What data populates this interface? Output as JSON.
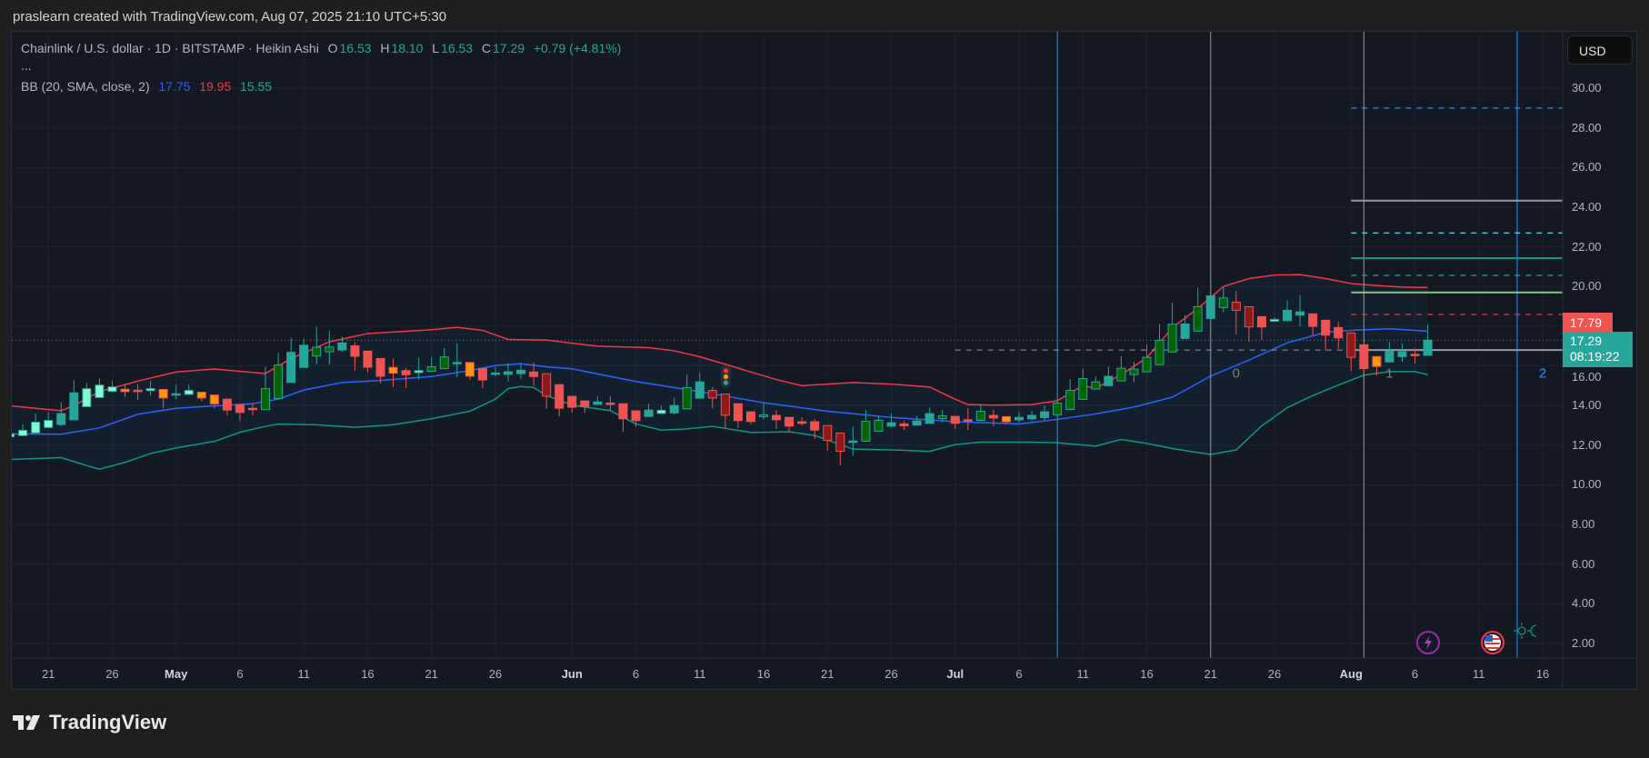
{
  "credit": "praslearn created with TradingView.com, Aug 07, 2025 21:10 UTC+5:30",
  "legend": {
    "symbol": "Chainlink / U.S. dollar · 1D · BITSTAMP · Heikin Ashi",
    "o_label": "O",
    "o": "16.53",
    "h_label": "H",
    "h": "18.10",
    "l_label": "L",
    "l": "16.53",
    "c_label": "C",
    "c": "17.29",
    "change": "+0.79 (+4.81%)",
    "more": "...",
    "bb_label": "BB (20, SMA, close, 2)",
    "bb_basis": "17.75",
    "bb_upper": "19.95",
    "bb_lower": "15.55"
  },
  "currency_button": "USD",
  "price_axis": [
    "30.00",
    "28.00",
    "26.00",
    "24.00",
    "22.00",
    "20.00",
    "16.00",
    "14.00",
    "12.00",
    "10.00",
    "8.00",
    "6.00",
    "4.00",
    "2.00"
  ],
  "price_labels": {
    "high": "17.79",
    "last": "17.29",
    "countdown": "08:19:22"
  },
  "time_axis": [
    {
      "label": "21",
      "day": 0
    },
    {
      "label": "26",
      "day": 5
    },
    {
      "label": "May",
      "day": 10,
      "month": true
    },
    {
      "label": "6",
      "day": 15
    },
    {
      "label": "11",
      "day": 20
    },
    {
      "label": "16",
      "day": 25
    },
    {
      "label": "21",
      "day": 30
    },
    {
      "label": "26",
      "day": 35
    },
    {
      "label": "Jun",
      "day": 41,
      "month": true
    },
    {
      "label": "6",
      "day": 46
    },
    {
      "label": "11",
      "day": 51
    },
    {
      "label": "16",
      "day": 56
    },
    {
      "label": "21",
      "day": 61
    },
    {
      "label": "26",
      "day": 66
    },
    {
      "label": "Jul",
      "day": 71,
      "month": true
    },
    {
      "label": "6",
      "day": 76
    },
    {
      "label": "11",
      "day": 81
    },
    {
      "label": "16",
      "day": 86
    },
    {
      "label": "21",
      "day": 91
    },
    {
      "label": "26",
      "day": 96
    },
    {
      "label": "Aug",
      "day": 102,
      "month": true
    },
    {
      "label": "6",
      "day": 107
    },
    {
      "label": "11",
      "day": 112
    },
    {
      "label": "16",
      "day": 117
    }
  ],
  "drawing_labels": [
    {
      "text": "0",
      "day": 93,
      "price": 15.4,
      "color": "#787b86"
    },
    {
      "text": "1",
      "day": 105,
      "price": 15.4,
      "color": "#787b86"
    },
    {
      "text": "2",
      "day": 117,
      "price": 15.4,
      "color": "#2196f3"
    }
  ],
  "footer_brand": "TradingView",
  "colors": {
    "up": "#26a69a",
    "down": "#ef5350",
    "aqua": "#80ffd4",
    "dark_green": "#006400",
    "dark_red": "#8b1a1a",
    "orange": "#ff9800",
    "bb_basis": "#2962ff",
    "bb_upper": "#f23645",
    "bb_lower": "#089981"
  },
  "chart_data": {
    "type": "candlestick",
    "style": "Heikin Ashi",
    "first_day_offset": -3,
    "candles": [
      [
        12.42,
        12.6,
        12.4,
        12.57,
        "A"
      ],
      [
        12.48,
        13.04,
        12.48,
        12.75,
        "A"
      ],
      [
        12.62,
        13.59,
        12.62,
        13.16,
        "A"
      ],
      [
        12.89,
        13.67,
        12.89,
        13.25,
        "A"
      ],
      [
        13.04,
        14.17,
        12.95,
        13.59,
        "T"
      ],
      [
        13.28,
        15.28,
        13.28,
        14.64,
        "T"
      ],
      [
        13.94,
        15.14,
        13.94,
        14.85,
        "A"
      ],
      [
        14.4,
        15.37,
        14.4,
        15.03,
        "A"
      ],
      [
        14.71,
        15.26,
        14.71,
        14.94,
        "A"
      ],
      [
        14.82,
        15.08,
        14.43,
        14.7,
        "O"
      ],
      [
        14.77,
        15.08,
        14.29,
        14.75,
        "R"
      ],
      [
        14.75,
        15.23,
        14.5,
        14.85,
        "A"
      ],
      [
        14.81,
        14.81,
        13.86,
        14.38,
        "O"
      ],
      [
        14.57,
        15.05,
        14.32,
        14.59,
        "T"
      ],
      [
        14.56,
        15.05,
        14.56,
        14.76,
        "A"
      ],
      [
        14.67,
        14.67,
        14.2,
        14.38,
        "O"
      ],
      [
        14.53,
        14.53,
        13.86,
        14.08,
        "O"
      ],
      [
        14.32,
        14.32,
        13.5,
        13.77,
        "R"
      ],
      [
        14.05,
        14.05,
        13.22,
        13.65,
        "R"
      ],
      [
        13.86,
        14.09,
        13.51,
        13.79,
        "R"
      ],
      [
        13.79,
        15.96,
        13.79,
        14.85,
        "G"
      ],
      [
        14.35,
        16.68,
        14.35,
        16.04,
        "G"
      ],
      [
        15.16,
        17.42,
        15.16,
        16.68,
        "T"
      ],
      [
        15.92,
        17.38,
        15.92,
        17.04,
        "T"
      ],
      [
        16.49,
        17.97,
        16.07,
        16.94,
        "G"
      ],
      [
        16.71,
        17.79,
        16.07,
        16.95,
        "G"
      ],
      [
        16.8,
        17.48,
        16.7,
        17.15,
        "T"
      ],
      [
        17.01,
        17.18,
        15.75,
        16.48,
        "R"
      ],
      [
        16.74,
        16.74,
        15.66,
        15.93,
        "R"
      ],
      [
        16.37,
        16.37,
        15.11,
        15.48,
        "R"
      ],
      [
        15.92,
        16.37,
        14.93,
        15.63,
        "O"
      ],
      [
        15.76,
        15.9,
        14.88,
        15.55,
        "R"
      ],
      [
        15.66,
        16.42,
        15.29,
        15.76,
        "A"
      ],
      [
        15.72,
        16.45,
        15.72,
        15.95,
        "G"
      ],
      [
        15.86,
        16.9,
        15.86,
        16.45,
        "G"
      ],
      [
        16.15,
        17.13,
        15.43,
        16.17,
        "T"
      ],
      [
        16.17,
        16.17,
        15.29,
        15.48,
        "O"
      ],
      [
        15.87,
        15.87,
        14.87,
        15.29,
        "R"
      ],
      [
        15.62,
        15.96,
        15.48,
        15.64,
        "T"
      ],
      [
        15.57,
        16.13,
        15.2,
        15.7,
        "T"
      ],
      [
        15.61,
        16.14,
        15.34,
        15.78,
        "T"
      ],
      [
        15.69,
        16.17,
        15.0,
        15.46,
        "R"
      ],
      [
        15.6,
        15.6,
        13.83,
        14.47,
        "D"
      ],
      [
        15.05,
        15.05,
        13.45,
        13.86,
        "R"
      ],
      [
        14.46,
        14.46,
        13.63,
        13.91,
        "R"
      ],
      [
        14.23,
        14.23,
        13.63,
        13.95,
        "R"
      ],
      [
        14.06,
        14.46,
        14.06,
        14.18,
        "T"
      ],
      [
        14.12,
        14.46,
        13.77,
        14.06,
        "R"
      ],
      [
        14.09,
        14.09,
        12.67,
        13.33,
        "R"
      ],
      [
        13.73,
        13.73,
        12.92,
        13.24,
        "R"
      ],
      [
        13.45,
        14.09,
        13.45,
        13.77,
        "T"
      ],
      [
        13.6,
        14.0,
        13.6,
        13.76,
        "A"
      ],
      [
        13.63,
        14.4,
        13.55,
        14.0,
        "T"
      ],
      [
        13.83,
        15.56,
        13.83,
        14.9,
        "G"
      ],
      [
        14.37,
        15.65,
        14.37,
        15.19,
        "T"
      ],
      [
        14.76,
        14.93,
        13.86,
        14.38,
        "D"
      ],
      [
        14.58,
        14.58,
        12.82,
        13.51,
        "D"
      ],
      [
        14.09,
        14.09,
        12.87,
        13.24,
        "R"
      ],
      [
        13.68,
        13.68,
        13.04,
        13.19,
        "R"
      ],
      [
        13.44,
        14.17,
        13.3,
        13.53,
        "G"
      ],
      [
        13.5,
        13.77,
        12.82,
        13.28,
        "R"
      ],
      [
        13.4,
        13.4,
        12.69,
        12.96,
        "R"
      ],
      [
        13.18,
        13.41,
        12.98,
        13.1,
        "R"
      ],
      [
        13.18,
        13.32,
        12.32,
        12.76,
        "R"
      ],
      [
        12.99,
        12.99,
        11.73,
        12.24,
        "D"
      ],
      [
        12.61,
        12.61,
        10.99,
        11.69,
        "D"
      ],
      [
        12.14,
        12.95,
        11.45,
        12.21,
        "T"
      ],
      [
        12.2,
        13.77,
        12.2,
        13.2,
        "G"
      ],
      [
        12.7,
        13.48,
        12.7,
        13.25,
        "G"
      ],
      [
        12.96,
        13.59,
        12.89,
        13.13,
        "T"
      ],
      [
        13.07,
        13.22,
        12.76,
        12.98,
        "R"
      ],
      [
        13.01,
        13.48,
        13.01,
        13.22,
        "T"
      ],
      [
        13.1,
        13.9,
        13.1,
        13.59,
        "T"
      ],
      [
        13.34,
        13.77,
        13.16,
        13.48,
        "G"
      ],
      [
        13.45,
        13.45,
        12.82,
        13.1,
        "R"
      ],
      [
        13.28,
        13.86,
        12.76,
        13.26,
        "R"
      ],
      [
        13.25,
        14.09,
        13.25,
        13.71,
        "G"
      ],
      [
        13.5,
        13.77,
        12.96,
        13.37,
        "R"
      ],
      [
        13.44,
        13.44,
        13.07,
        13.18,
        "O"
      ],
      [
        13.28,
        13.68,
        13.15,
        13.4,
        "T"
      ],
      [
        13.33,
        13.74,
        13.25,
        13.5,
        "T"
      ],
      [
        13.39,
        14.0,
        13.25,
        13.68,
        "T"
      ],
      [
        13.53,
        14.3,
        13.53,
        14.12,
        "G"
      ],
      [
        13.8,
        15.33,
        13.8,
        14.76,
        "G"
      ],
      [
        14.31,
        15.88,
        14.31,
        15.36,
        "G"
      ],
      [
        14.83,
        15.47,
        14.8,
        15.19,
        "G"
      ],
      [
        15.0,
        15.97,
        15.0,
        15.47,
        "T"
      ],
      [
        15.24,
        16.49,
        15.24,
        15.88,
        "G"
      ],
      [
        15.56,
        16.21,
        15.18,
        15.83,
        "G"
      ],
      [
        15.7,
        17.08,
        15.7,
        16.43,
        "G"
      ],
      [
        16.06,
        18.11,
        16.06,
        17.28,
        "G"
      ],
      [
        16.7,
        19.18,
        16.7,
        18.1,
        "G"
      ],
      [
        17.38,
        18.57,
        17.38,
        18.11,
        "T"
      ],
      [
        17.75,
        19.94,
        17.75,
        18.98,
        "G"
      ],
      [
        18.39,
        20.27,
        18.39,
        19.53,
        "T"
      ],
      [
        18.94,
        20.0,
        18.71,
        19.42,
        "G"
      ],
      [
        19.21,
        19.76,
        17.6,
        18.8,
        "D"
      ],
      [
        18.98,
        18.98,
        17.2,
        17.96,
        "D"
      ],
      [
        18.48,
        18.48,
        17.31,
        17.96,
        "R"
      ],
      [
        18.25,
        18.45,
        18.22,
        18.34,
        "A"
      ],
      [
        18.28,
        19.3,
        18.28,
        18.8,
        "T"
      ],
      [
        18.56,
        19.57,
        17.99,
        18.72,
        "T"
      ],
      [
        18.62,
        18.62,
        17.54,
        17.99,
        "R"
      ],
      [
        18.3,
        18.3,
        16.78,
        17.55,
        "R"
      ],
      [
        17.93,
        18.2,
        16.87,
        17.41,
        "R"
      ],
      [
        17.66,
        17.66,
        15.73,
        16.43,
        "D"
      ],
      [
        17.06,
        17.06,
        15.56,
        15.86,
        "R"
      ],
      [
        16.47,
        16.47,
        15.51,
        15.97,
        "O"
      ],
      [
        16.2,
        17.2,
        16.2,
        16.75,
        "T"
      ],
      [
        16.47,
        17.13,
        16.2,
        16.71,
        "T"
      ],
      [
        16.58,
        16.88,
        16.1,
        16.52,
        "R"
      ],
      [
        16.53,
        18.1,
        16.53,
        17.29,
        "T"
      ]
    ],
    "bb_upper": [
      [
        -3,
        13.98
      ],
      [
        1,
        13.74
      ],
      [
        2,
        14.0
      ],
      [
        4,
        14.7
      ],
      [
        7,
        15.23
      ],
      [
        10,
        15.69
      ],
      [
        13,
        15.84
      ],
      [
        17,
        15.61
      ],
      [
        19,
        16.37
      ],
      [
        22,
        17.21
      ],
      [
        25,
        17.63
      ],
      [
        30,
        17.82
      ],
      [
        32,
        17.94
      ],
      [
        34,
        17.79
      ],
      [
        36,
        17.33
      ],
      [
        39,
        17.3
      ],
      [
        43,
        16.99
      ],
      [
        47,
        16.92
      ],
      [
        49,
        16.76
      ],
      [
        51,
        16.46
      ],
      [
        53,
        16.08
      ],
      [
        55,
        15.69
      ],
      [
        57,
        15.31
      ],
      [
        59,
        15.0
      ],
      [
        61,
        15.08
      ],
      [
        63,
        15.16
      ],
      [
        66,
        15.08
      ],
      [
        69,
        14.93
      ],
      [
        71,
        14.32
      ],
      [
        72,
        14.05
      ],
      [
        74,
        14.02
      ],
      [
        77,
        14.05
      ],
      [
        79,
        14.24
      ],
      [
        81,
        15.0
      ],
      [
        82,
        14.87
      ],
      [
        84,
        15.56
      ],
      [
        86,
        16.4
      ],
      [
        88,
        17.92
      ],
      [
        90,
        18.9
      ],
      [
        91,
        19.44
      ],
      [
        92,
        20.0
      ],
      [
        94,
        20.4
      ],
      [
        96,
        20.58
      ],
      [
        98,
        20.6
      ],
      [
        100,
        20.4
      ],
      [
        102,
        20.15
      ],
      [
        104,
        20.05
      ],
      [
        106,
        19.97
      ],
      [
        108,
        19.95
      ]
    ],
    "bb_basis": [
      [
        -3,
        12.57
      ],
      [
        1,
        12.55
      ],
      [
        4,
        12.87
      ],
      [
        7,
        13.56
      ],
      [
        10,
        13.86
      ],
      [
        13,
        13.98
      ],
      [
        16,
        14.09
      ],
      [
        18,
        14.32
      ],
      [
        20,
        14.78
      ],
      [
        23,
        15.16
      ],
      [
        26,
        15.26
      ],
      [
        30,
        15.46
      ],
      [
        33,
        15.76
      ],
      [
        35,
        16.02
      ],
      [
        37,
        16.11
      ],
      [
        39,
        15.95
      ],
      [
        41,
        15.85
      ],
      [
        46,
        15.21
      ],
      [
        51,
        14.7
      ],
      [
        56,
        14.14
      ],
      [
        61,
        13.71
      ],
      [
        66,
        13.4
      ],
      [
        71,
        13.18
      ],
      [
        76,
        13.07
      ],
      [
        79,
        13.3
      ],
      [
        82,
        13.58
      ],
      [
        85,
        13.92
      ],
      [
        88,
        14.42
      ],
      [
        91,
        15.48
      ],
      [
        94,
        16.29
      ],
      [
        97,
        17.16
      ],
      [
        100,
        17.69
      ],
      [
        102,
        17.79
      ],
      [
        105,
        17.87
      ],
      [
        108,
        17.75
      ]
    ],
    "bb_lower": [
      [
        -3,
        11.28
      ],
      [
        1,
        11.37
      ],
      [
        3,
        10.97
      ],
      [
        4,
        10.79
      ],
      [
        6,
        11.13
      ],
      [
        8,
        11.58
      ],
      [
        10,
        11.86
      ],
      [
        13,
        12.19
      ],
      [
        15,
        12.65
      ],
      [
        17,
        12.95
      ],
      [
        18,
        13.06
      ],
      [
        21,
        13.03
      ],
      [
        24,
        12.9
      ],
      [
        27,
        13.03
      ],
      [
        30,
        13.33
      ],
      [
        33,
        13.71
      ],
      [
        35,
        14.32
      ],
      [
        36,
        14.85
      ],
      [
        37,
        14.96
      ],
      [
        38,
        14.9
      ],
      [
        39,
        14.5
      ],
      [
        41,
        14.02
      ],
      [
        44,
        13.74
      ],
      [
        46,
        13.07
      ],
      [
        48,
        12.76
      ],
      [
        50,
        12.82
      ],
      [
        52,
        12.95
      ],
      [
        55,
        12.64
      ],
      [
        58,
        12.67
      ],
      [
        60,
        12.49
      ],
      [
        62,
        12.03
      ],
      [
        63,
        11.8
      ],
      [
        66,
        11.76
      ],
      [
        69,
        11.69
      ],
      [
        71,
        12.03
      ],
      [
        73,
        12.15
      ],
      [
        77,
        12.15
      ],
      [
        79,
        12.12
      ],
      [
        82,
        11.95
      ],
      [
        84,
        12.29
      ],
      [
        86,
        12.09
      ],
      [
        88,
        11.83
      ],
      [
        91,
        11.53
      ],
      [
        93,
        11.76
      ],
      [
        95,
        12.97
      ],
      [
        97,
        13.89
      ],
      [
        99,
        14.5
      ],
      [
        101,
        15.03
      ],
      [
        103,
        15.53
      ],
      [
        105,
        15.71
      ],
      [
        107,
        15.71
      ],
      [
        108,
        15.55
      ]
    ],
    "levels": [
      {
        "price": 29.0,
        "color": "#2196f3",
        "style": "dashed"
      },
      {
        "price": 24.33,
        "color": "#9598a1",
        "style": "solid"
      },
      {
        "price": 22.7,
        "color": "#4dd0e1",
        "style": "dashed"
      },
      {
        "price": 21.43,
        "color": "#089981",
        "style": "solid"
      },
      {
        "price": 20.56,
        "color": "#26a69a",
        "style": "dashed"
      },
      {
        "price": 19.7,
        "color": "#81c784",
        "style": "solid"
      },
      {
        "price": 18.59,
        "color": "#f23645",
        "style": "dashed"
      },
      {
        "price": 16.8,
        "color": "#9598a1",
        "style": "solid",
        "dashed_from_day": 71
      }
    ],
    "levels_start_day": 102,
    "vertical_lines": [
      {
        "day": 79,
        "color": "#2196f3"
      },
      {
        "day": 91,
        "color": "#9598a1"
      },
      {
        "day": 103,
        "color": "#9598a1"
      },
      {
        "day": 115,
        "color": "#2196f3"
      }
    ],
    "last_price": 17.29,
    "ylim": [
      1,
      32
    ]
  }
}
